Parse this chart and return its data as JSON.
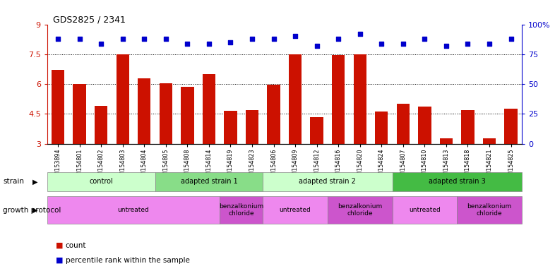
{
  "title": "GDS2825 / 2341",
  "samples": [
    "GSM153894",
    "GSM154801",
    "GSM154802",
    "GSM154803",
    "GSM154804",
    "GSM154805",
    "GSM154808",
    "GSM154814",
    "GSM154819",
    "GSM154823",
    "GSM154806",
    "GSM154809",
    "GSM154812",
    "GSM154816",
    "GSM154820",
    "GSM154824",
    "GSM154807",
    "GSM154810",
    "GSM154813",
    "GSM154818",
    "GSM154821",
    "GSM154825"
  ],
  "bar_values": [
    6.7,
    6.0,
    4.9,
    7.5,
    6.3,
    6.05,
    5.85,
    6.5,
    4.65,
    4.7,
    5.95,
    7.5,
    4.35,
    7.45,
    7.5,
    4.6,
    5.0,
    4.85,
    3.25,
    4.7,
    3.25,
    4.75
  ],
  "percentile_values": [
    88,
    88,
    84,
    88,
    88,
    88,
    84,
    84,
    85,
    88,
    88,
    90,
    82,
    88,
    92,
    84,
    84,
    88,
    82,
    84,
    84,
    88
  ],
  "bar_color": "#cc1100",
  "dot_color": "#0000cc",
  "ylim_left": [
    3,
    9
  ],
  "ylim_right": [
    0,
    100
  ],
  "yticks_left": [
    3,
    4.5,
    6,
    7.5,
    9
  ],
  "yticks_right": [
    0,
    25,
    50,
    75,
    100
  ],
  "hlines": [
    4.5,
    6.0,
    7.5
  ],
  "strain_groups": [
    {
      "label": "control",
      "start": 0,
      "end": 4,
      "color": "#ccffcc"
    },
    {
      "label": "adapted strain 1",
      "start": 5,
      "end": 9,
      "color": "#88dd88"
    },
    {
      "label": "adapted strain 2",
      "start": 10,
      "end": 15,
      "color": "#ccffcc"
    },
    {
      "label": "adapted strain 3",
      "start": 16,
      "end": 21,
      "color": "#44bb44"
    }
  ],
  "protocol_groups": [
    {
      "label": "untreated",
      "start": 0,
      "end": 7,
      "color": "#ee88ee"
    },
    {
      "label": "benzalkonium\nchloride",
      "start": 8,
      "end": 9,
      "color": "#cc55cc"
    },
    {
      "label": "untreated",
      "start": 10,
      "end": 12,
      "color": "#ee88ee"
    },
    {
      "label": "benzalkonium\nchloride",
      "start": 13,
      "end": 15,
      "color": "#cc55cc"
    },
    {
      "label": "untreated",
      "start": 16,
      "end": 18,
      "color": "#ee88ee"
    },
    {
      "label": "benzalkonium\nchloride",
      "start": 19,
      "end": 21,
      "color": "#cc55cc"
    }
  ],
  "legend_count_label": "count",
  "legend_pct_label": "percentile rank within the sample",
  "strain_label": "strain",
  "protocol_label": "growth protocol",
  "fig_width": 7.86,
  "fig_height": 3.84,
  "dpi": 100
}
